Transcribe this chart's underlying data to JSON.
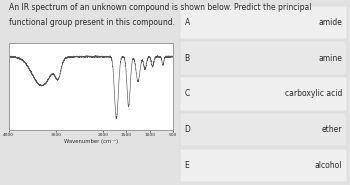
{
  "title_line1": "An IR spectrum of an unknown compound is shown below. Predict the principal",
  "title_line2": "functional group present in this compound.",
  "title_fontsize": 5.5,
  "spectrum_xlabel": "Wavenumber (cm⁻¹)",
  "spectrum_xlabel_fontsize": 3.8,
  "xtick_labels": [
    "4000",
    "3000",
    "2000",
    "1500",
    "1000",
    "500"
  ],
  "xtick_vals": [
    4000,
    3000,
    2000,
    1500,
    1000,
    500
  ],
  "choices": [
    {
      "label": "A",
      "text": "amide"
    },
    {
      "label": "B",
      "text": "amine"
    },
    {
      "label": "C",
      "text": "carboxylic acid"
    },
    {
      "label": "D",
      "text": "ether"
    },
    {
      "label": "E",
      "text": "alcohol"
    }
  ],
  "bg_color": "#e2e2e2",
  "choice_bg_light": "#efefef",
  "choice_bg_dark": "#e8e8e8",
  "spectrum_bg": "#ffffff",
  "border_color": "#999999",
  "text_color": "#2a2a2a",
  "spectrum_line_color": "#555555",
  "label_fontsize": 5.5,
  "choice_fontsize": 5.5
}
